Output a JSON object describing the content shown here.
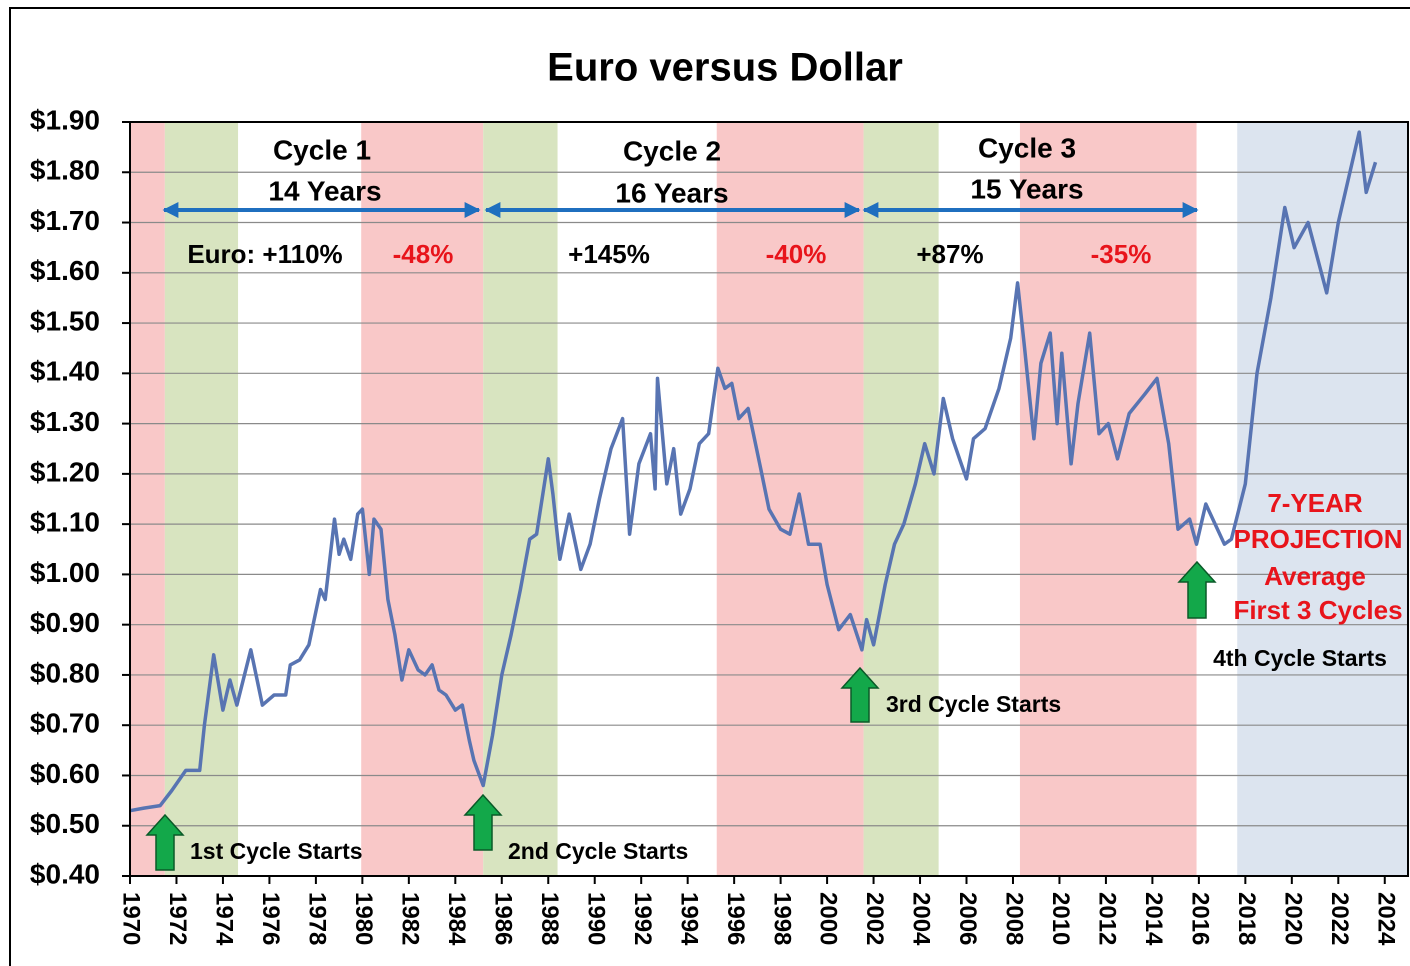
{
  "chart_data": {
    "type": "line",
    "title": "Euro versus Dollar",
    "xlim": [
      1970,
      2025
    ],
    "ylim": [
      0.4,
      1.9
    ],
    "xticks": [
      1970,
      1972,
      1974,
      1976,
      1978,
      1980,
      1982,
      1984,
      1986,
      1988,
      1990,
      1992,
      1994,
      1996,
      1998,
      2000,
      2002,
      2004,
      2006,
      2008,
      2010,
      2012,
      2014,
      2016,
      2018,
      2020,
      2022,
      2024
    ],
    "yticks": [
      {
        "value": 0.4,
        "label": "$0.40"
      },
      {
        "value": 0.5,
        "label": "$0.50"
      },
      {
        "value": 0.6,
        "label": "$0.60"
      },
      {
        "value": 0.7,
        "label": "$0.70"
      },
      {
        "value": 0.8,
        "label": "$0.80"
      },
      {
        "value": 0.9,
        "label": "$0.90"
      },
      {
        "value": 1.0,
        "label": "$1.00"
      },
      {
        "value": 1.1,
        "label": "$1.10"
      },
      {
        "value": 1.2,
        "label": "$1.20"
      },
      {
        "value": 1.3,
        "label": "$1.30"
      },
      {
        "value": 1.4,
        "label": "$1.40"
      },
      {
        "value": 1.5,
        "label": "$1.50"
      },
      {
        "value": 1.6,
        "label": "$1.60"
      },
      {
        "value": 1.7,
        "label": "$1.70"
      },
      {
        "value": 1.8,
        "label": "$1.80"
      },
      {
        "value": 1.9,
        "label": "$1.90"
      }
    ],
    "grid": true,
    "bands": [
      {
        "start": 1970,
        "end": 1971.5,
        "color": "#f9c8c8"
      },
      {
        "start": 1971.5,
        "end": 1974.65,
        "color": "#d8e4c0"
      },
      {
        "start": 1979.95,
        "end": 1985.2,
        "color": "#f9c8c8"
      },
      {
        "start": 1985.2,
        "end": 1988.4,
        "color": "#d8e4c0"
      },
      {
        "start": 1995.25,
        "end": 2001.57,
        "color": "#f9c8c8"
      },
      {
        "start": 2001.57,
        "end": 2004.8,
        "color": "#d8e4c0"
      },
      {
        "start": 2008.3,
        "end": 2015.9,
        "color": "#f9c8c8"
      },
      {
        "start": 2017.65,
        "end": 2025,
        "color": "#dce4ef"
      }
    ],
    "series": [
      {
        "color": "#5874b2",
        "x": [
          1970.0,
          1970.6,
          1971.3,
          1971.8,
          1972.4,
          1973.0,
          1973.2,
          1973.6,
          1974.0,
          1974.3,
          1974.6,
          1975.2,
          1975.7,
          1976.2,
          1976.7,
          1976.9,
          1977.3,
          1977.7,
          1978.2,
          1978.4,
          1978.8,
          1979.0,
          1979.2,
          1979.5,
          1979.8,
          1980.0,
          1980.3,
          1980.5,
          1980.8,
          1981.1,
          1981.4,
          1981.7,
          1982.0,
          1982.4,
          1982.7,
          1983.0,
          1983.3,
          1983.6,
          1984.0,
          1984.3,
          1984.6,
          1984.8,
          1985.2,
          1985.6,
          1986.0,
          1986.4,
          1986.8,
          1987.2,
          1987.5,
          1988.0,
          1988.2,
          1988.5,
          1988.9,
          1989.4,
          1989.8,
          1990.2,
          1990.7,
          1991.2,
          1991.5,
          1991.9,
          1992.4,
          1992.6,
          1992.7,
          1993.1,
          1993.4,
          1993.7,
          1994.1,
          1994.5,
          1994.9,
          1995.3,
          1995.6,
          1995.9,
          1996.2,
          1996.6,
          1997.1,
          1997.5,
          1998.0,
          1998.4,
          1998.8,
          1999.2,
          1999.7,
          2000.0,
          2000.5,
          2001.0,
          2001.5,
          2001.7,
          2002.0,
          2002.5,
          2002.9,
          2003.3,
          2003.8,
          2004.2,
          2004.6,
          2005.0,
          2005.4,
          2005.7,
          2006.0,
          2006.3,
          2006.8,
          2007.4,
          2007.9,
          2008.2,
          2008.5,
          2008.9,
          2009.2,
          2009.6,
          2009.9,
          2010.1,
          2010.5,
          2010.8,
          2011.3,
          2011.7,
          2012.1,
          2012.5,
          2013.0,
          2013.7,
          2014.2,
          2014.7,
          2015.1,
          2015.6,
          2015.9,
          2016.3,
          2016.7,
          2017.1,
          2017.4,
          2018.0,
          2018.5,
          2019.1,
          2019.7,
          2020.1,
          2020.7,
          2021.5,
          2022.0,
          2022.9,
          2023.2,
          2023.6
        ],
        "values": [
          0.53,
          0.535,
          0.54,
          0.57,
          0.61,
          0.61,
          0.7,
          0.84,
          0.73,
          0.79,
          0.74,
          0.85,
          0.74,
          0.76,
          0.76,
          0.82,
          0.83,
          0.86,
          0.97,
          0.95,
          1.11,
          1.04,
          1.07,
          1.03,
          1.12,
          1.13,
          1.0,
          1.11,
          1.09,
          0.95,
          0.88,
          0.79,
          0.85,
          0.81,
          0.8,
          0.82,
          0.77,
          0.76,
          0.73,
          0.74,
          0.67,
          0.63,
          0.58,
          0.68,
          0.8,
          0.88,
          0.97,
          1.07,
          1.08,
          1.23,
          1.16,
          1.03,
          1.12,
          1.01,
          1.06,
          1.15,
          1.25,
          1.31,
          1.08,
          1.22,
          1.28,
          1.17,
          1.39,
          1.18,
          1.25,
          1.12,
          1.17,
          1.26,
          1.28,
          1.41,
          1.37,
          1.38,
          1.31,
          1.33,
          1.22,
          1.13,
          1.09,
          1.08,
          1.16,
          1.06,
          1.06,
          0.98,
          0.89,
          0.92,
          0.85,
          0.91,
          0.86,
          0.98,
          1.06,
          1.1,
          1.18,
          1.26,
          1.2,
          1.35,
          1.27,
          1.23,
          1.19,
          1.27,
          1.29,
          1.37,
          1.47,
          1.58,
          1.45,
          1.27,
          1.42,
          1.48,
          1.3,
          1.44,
          1.22,
          1.34,
          1.48,
          1.28,
          1.3,
          1.23,
          1.32,
          1.36,
          1.39,
          1.26,
          1.09,
          1.11,
          1.06,
          1.14,
          1.1,
          1.06,
          1.07,
          1.18,
          1.4,
          1.55,
          1.73,
          1.65,
          1.7,
          1.56,
          1.7,
          1.88,
          1.76,
          1.82
        ]
      }
    ],
    "annotations": [
      "Cycle 1",
      "14 Years",
      "Cycle 2",
      "16 Years",
      "Cycle 3",
      "15 Years",
      "Euro: +110%",
      "-48%",
      "+145%",
      "-40%",
      "+87%",
      "-35%",
      "1st Cycle Starts",
      "2nd Cycle Starts",
      "3rd Cycle Starts",
      "4th Cycle Starts",
      "7-YEAR",
      "PROJECTION",
      "Average",
      "First 3 Cycles"
    ]
  }
}
